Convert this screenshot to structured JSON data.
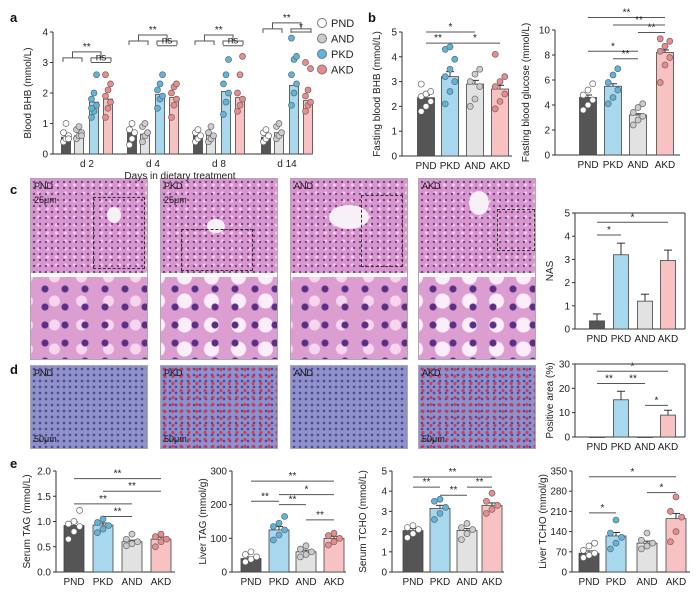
{
  "panel_labels": [
    "a",
    "b",
    "c",
    "d",
    "e"
  ],
  "colors": {
    "PND": "#555555",
    "AND": "#e2e2e2",
    "PKD": "#a8d8ee",
    "AKD": "#f9c2c2",
    "dot_PND": "#ffffff",
    "dot_AND": "#cccccc",
    "dot_PKD": "#5ab6df",
    "dot_AKD": "#ef8a8a"
  },
  "panel_a": {
    "legend": [
      "PND",
      "AND",
      "PKD",
      "AKD"
    ],
    "xlabel": "Days in dietary treatment"
  },
  "histology": {
    "c": [
      {
        "label": "PND",
        "scale": "25μm"
      },
      {
        "label": "PKD",
        "scale": "25μm"
      },
      {
        "label": "AND",
        "scale": ""
      },
      {
        "label": "AKD",
        "scale": ""
      }
    ],
    "d": [
      {
        "label": "PND",
        "scale": "50μm"
      },
      {
        "label": "PKD",
        "scale": "50μm"
      },
      {
        "label": "AND",
        "scale": ""
      },
      {
        "label": "AKD",
        "scale": "50μm"
      }
    ]
  },
  "chart_data": [
    {
      "id": "a",
      "type": "bar",
      "ylabel": "Blood BHB (mmol/L)",
      "ylim": [
        0,
        4
      ],
      "ticks": [
        0,
        1,
        2,
        3,
        4
      ],
      "groups": [
        "d 2",
        "d 4",
        "d 8",
        "d 14"
      ],
      "categories": [
        "PND",
        "AND",
        "PKD",
        "AKD"
      ],
      "series": [
        {
          "name": "d 2",
          "means": [
            0.55,
            0.6,
            1.7,
            1.8
          ],
          "points": [
            [
              0.4,
              0.5,
              0.6,
              0.7,
              1.0,
              0.5
            ],
            [
              0.5,
              0.6,
              0.7,
              0.8,
              0.9,
              0.6
            ],
            [
              1.2,
              1.4,
              1.6,
              1.8,
              2.0,
              2.6,
              1.5
            ],
            [
              1.2,
              1.5,
              1.7,
              1.9,
              2.1,
              2.3,
              2.6
            ]
          ]
        },
        {
          "name": "d 4",
          "means": [
            0.7,
            0.65,
            1.95,
            1.85
          ],
          "points": [
            [
              0.3,
              0.5,
              0.7,
              0.8,
              1.0
            ],
            [
              0.4,
              0.6,
              0.7,
              0.9,
              1.0
            ],
            [
              1.5,
              1.8,
              1.9,
              2.1,
              2.3,
              2.6
            ],
            [
              1.2,
              1.6,
              1.8,
              2.0,
              2.2,
              2.3
            ]
          ]
        },
        {
          "name": "d 8",
          "means": [
            0.6,
            0.6,
            2.05,
            1.85
          ],
          "points": [
            [
              0.4,
              0.5,
              0.6,
              0.7,
              0.8
            ],
            [
              0.4,
              0.5,
              0.6,
              0.7,
              0.9
            ],
            [
              1.3,
              1.7,
              2.0,
              2.3,
              2.6,
              3.1
            ],
            [
              1.4,
              1.6,
              1.8,
              2.0,
              2.6,
              3.2
            ]
          ]
        },
        {
          "name": "d 14",
          "means": [
            0.55,
            0.7,
            2.25,
            1.75
          ],
          "points": [
            [
              0.4,
              0.5,
              0.6,
              0.7,
              0.8
            ],
            [
              0.5,
              0.6,
              0.7,
              0.9,
              1.0
            ],
            [
              1.6,
              2.0,
              2.3,
              2.6,
              3.1,
              3.2,
              3.8
            ],
            [
              1.4,
              1.6,
              1.7,
              1.9,
              2.1,
              2.8,
              3.0
            ]
          ]
        }
      ],
      "sig": [
        {
          "label": "**",
          "y": 3.35,
          "sub": "ns",
          "sub_y": 3.0
        },
        {
          "label": "**",
          "y": 3.9,
          "sub": "ns",
          "sub_y": 3.55
        },
        {
          "label": "**",
          "y": 3.9,
          "sub": "ns",
          "sub_y": 3.55
        },
        {
          "label": "**",
          "y": 4.3,
          "sub": "*",
          "sub_y": 4.0
        }
      ]
    },
    {
      "id": "b1",
      "type": "bar",
      "ylabel": "Fasting blood BHB (mmol/L)",
      "ylim": [
        0,
        5
      ],
      "ticks": [
        0,
        1,
        2,
        3,
        4,
        5
      ],
      "categories": [
        "PND",
        "PKD",
        "AND",
        "AKD"
      ],
      "means": [
        2.35,
        3.2,
        2.9,
        2.7
      ],
      "errors": [
        0.1,
        0.2,
        0.15,
        0.15
      ],
      "points": [
        [
          1.8,
          2.0,
          2.2,
          2.4,
          2.5,
          2.6,
          2.9
        ],
        [
          2.1,
          2.6,
          3.0,
          3.2,
          3.5,
          3.9,
          4.3,
          4.4
        ],
        [
          2.0,
          2.3,
          2.8,
          3.0,
          3.3,
          3.5
        ],
        [
          1.9,
          2.2,
          2.5,
          2.8,
          3.0,
          3.2,
          4.1
        ]
      ],
      "sig": [
        {
          "from": 0,
          "to": 2,
          "label": "*",
          "y": 5.0
        },
        {
          "from": 0,
          "to": 1,
          "label": "**",
          "y": 4.55
        },
        {
          "from": 1,
          "to": 3,
          "label": "*",
          "y": 4.55
        }
      ]
    },
    {
      "id": "b2",
      "type": "bar",
      "ylabel": "Fasting blood glucose (mmol/L)",
      "ylim": [
        0,
        10
      ],
      "ticks": [
        0,
        2,
        4,
        6,
        8,
        10
      ],
      "categories": [
        "PND",
        "PKD",
        "AND",
        "AKD"
      ],
      "means": [
        4.6,
        5.5,
        3.2,
        8.2
      ],
      "errors": [
        0.2,
        0.2,
        0.1,
        0.2
      ],
      "points": [
        [
          3.6,
          4.0,
          4.4,
          4.8,
          5.2,
          5.7
        ],
        [
          4.1,
          4.6,
          5.2,
          5.8,
          6.4,
          6.9
        ],
        [
          2.4,
          2.8,
          3.1,
          3.4,
          3.8,
          4.1
        ],
        [
          5.8,
          7.2,
          7.8,
          8.3,
          8.7,
          9.1,
          9.3
        ]
      ],
      "sig": [
        {
          "from": 0,
          "to": 3,
          "label": "**",
          "y": 11.0
        },
        {
          "from": 1,
          "to": 3,
          "label": "**",
          "y": 10.4
        },
        {
          "from": 2,
          "to": 3,
          "label": "**",
          "y": 9.8
        },
        {
          "from": 0,
          "to": 2,
          "label": "*",
          "y": 8.3
        },
        {
          "from": 1,
          "to": 2,
          "label": "**",
          "y": 7.7
        }
      ]
    },
    {
      "id": "c",
      "type": "bar",
      "ylabel": "NAS",
      "ylim": [
        0,
        5
      ],
      "ticks": [
        0,
        1,
        2,
        3,
        4,
        5
      ],
      "box": true,
      "categories": [
        "PND",
        "PKD",
        "AND",
        "AKD"
      ],
      "means": [
        0.35,
        3.2,
        1.2,
        2.95
      ],
      "errors": [
        0.3,
        0.5,
        0.3,
        0.45
      ],
      "sig": [
        {
          "from": 0,
          "to": 3,
          "label": "*",
          "y": 4.6
        },
        {
          "from": 0,
          "to": 1,
          "label": "*",
          "y": 4.05
        }
      ]
    },
    {
      "id": "d",
      "type": "bar",
      "ylabel": "Positive area (%)",
      "ylim": [
        0,
        30
      ],
      "ticks": [
        0,
        10,
        20,
        30
      ],
      "box": true,
      "categories": [
        "PND",
        "PKD",
        "AND",
        "AKD"
      ],
      "means": [
        0,
        15.3,
        0,
        9
      ],
      "errors": [
        0,
        3.5,
        0,
        2
      ],
      "sig": [
        {
          "from": 0,
          "to": 3,
          "label": "*",
          "y": 27
        },
        {
          "from": 0,
          "to": 1,
          "label": "**",
          "y": 22
        },
        {
          "from": 1,
          "to": 2,
          "label": "**",
          "y": 22
        },
        {
          "from": 2,
          "to": 3,
          "label": "*",
          "y": 13
        }
      ]
    },
    {
      "id": "e1",
      "type": "bar",
      "ylabel": "Serum TAG (mmol/L)",
      "ylim": [
        0,
        2
      ],
      "ticks": [
        "0.0",
        "0.5",
        "1.0",
        "1.5",
        "2.0"
      ],
      "categories": [
        "PND",
        "PKD",
        "AND",
        "AKD"
      ],
      "means": [
        0.92,
        0.93,
        0.6,
        0.65
      ],
      "errors": [
        0.07,
        0.04,
        0.03,
        0.04
      ],
      "points": [
        [
          0.65,
          0.8,
          0.9,
          0.95,
          1.0,
          1.22
        ],
        [
          0.78,
          0.85,
          0.92,
          0.98,
          1.05
        ],
        [
          0.52,
          0.56,
          0.6,
          0.65,
          0.75
        ],
        [
          0.5,
          0.6,
          0.65,
          0.7,
          0.75
        ]
      ],
      "sig": [
        {
          "from": 0,
          "to": 3,
          "label": "**",
          "y": 1.85
        },
        {
          "from": 1,
          "to": 3,
          "label": "**",
          "y": 1.6
        },
        {
          "from": 0,
          "to": 2,
          "label": "**",
          "y": 1.35
        },
        {
          "from": 1,
          "to": 2,
          "label": "**",
          "y": 1.1
        }
      ]
    },
    {
      "id": "e2",
      "type": "bar",
      "ylabel": "Liver TAG (mmol/g)",
      "ylim": [
        0,
        300
      ],
      "ticks": [
        0,
        100,
        200,
        300
      ],
      "categories": [
        "PND",
        "PKD",
        "AND",
        "AKD"
      ],
      "means": [
        40,
        125,
        60,
        100
      ],
      "errors": [
        4,
        10,
        5,
        6
      ],
      "points": [
        [
          30,
          38,
          45,
          52,
          60
        ],
        [
          95,
          110,
          125,
          135,
          145,
          165
        ],
        [
          45,
          52,
          60,
          68,
          78
        ],
        [
          80,
          90,
          100,
          108,
          115
        ]
      ],
      "sig": [
        {
          "from": 0,
          "to": 3,
          "label": "**",
          "y": 270
        },
        {
          "from": 1,
          "to": 3,
          "label": "*",
          "y": 230
        },
        {
          "from": 0,
          "to": 1,
          "label": "**",
          "y": 210
        },
        {
          "from": 1,
          "to": 2,
          "label": "**",
          "y": 200
        },
        {
          "from": 2,
          "to": 3,
          "label": "**",
          "y": 155
        }
      ]
    },
    {
      "id": "e3",
      "type": "bar",
      "ylabel": "Serum TCHO (mmol/L)",
      "ylim": [
        0,
        5
      ],
      "ticks": [
        0,
        1,
        2,
        3,
        4,
        5
      ],
      "categories": [
        "PND",
        "PKD",
        "AND",
        "AKD"
      ],
      "means": [
        2.05,
        3.15,
        2.05,
        3.3
      ],
      "errors": [
        0.1,
        0.15,
        0.1,
        0.12
      ],
      "points": [
        [
          1.7,
          1.9,
          2.1,
          2.2,
          2.3
        ],
        [
          2.6,
          2.9,
          3.2,
          3.5,
          3.6
        ],
        [
          1.6,
          1.9,
          2.1,
          2.2,
          2.4
        ],
        [
          2.9,
          3.1,
          3.3,
          3.5,
          3.9
        ]
      ],
      "sig": [
        {
          "from": 0,
          "to": 3,
          "label": "**",
          "y": 4.7
        },
        {
          "from": 0,
          "to": 1,
          "label": "**",
          "y": 4.2
        },
        {
          "from": 1,
          "to": 2,
          "label": "**",
          "y": 3.8
        },
        {
          "from": 2,
          "to": 3,
          "label": "**",
          "y": 4.2
        }
      ]
    },
    {
      "id": "e4",
      "type": "bar",
      "ylabel": "Liver TCHO (mmol/g)",
      "ylim": [
        0,
        350
      ],
      "ticks": [
        0,
        70,
        140,
        210,
        280,
        350
      ],
      "categories": [
        "PND",
        "PKD",
        "AND",
        "AKD"
      ],
      "means": [
        65,
        125,
        100,
        185
      ],
      "errors": [
        8,
        12,
        7,
        18
      ],
      "points": [
        [
          50,
          58,
          65,
          75,
          90,
          100
        ],
        [
          80,
          100,
          120,
          135,
          180
        ],
        [
          80,
          90,
          100,
          110,
          135
        ],
        [
          105,
          140,
          190,
          210,
          260
        ]
      ],
      "sig": [
        {
          "from": 0,
          "to": 3,
          "label": "*",
          "y": 330
        },
        {
          "from": 0,
          "to": 1,
          "label": "*",
          "y": 205
        },
        {
          "from": 2,
          "to": 3,
          "label": "*",
          "y": 275
        }
      ]
    }
  ]
}
